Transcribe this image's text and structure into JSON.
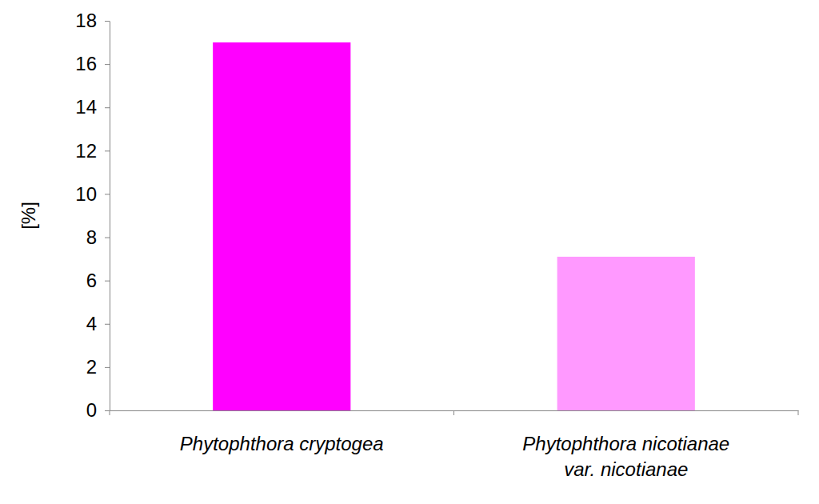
{
  "chart_data": {
    "type": "bar",
    "y_label": "[%]",
    "categories": [
      "Phytophthora cryptogea",
      "Phytophthora nicotianae\nvar. nicotianae"
    ],
    "values": [
      17,
      7.1
    ],
    "colors": [
      "#ff00ff",
      "#ff99ff"
    ],
    "ylim": [
      0,
      18
    ],
    "yticks": [
      0,
      2,
      4,
      6,
      8,
      10,
      12,
      14,
      16,
      18
    ],
    "grid": false
  }
}
